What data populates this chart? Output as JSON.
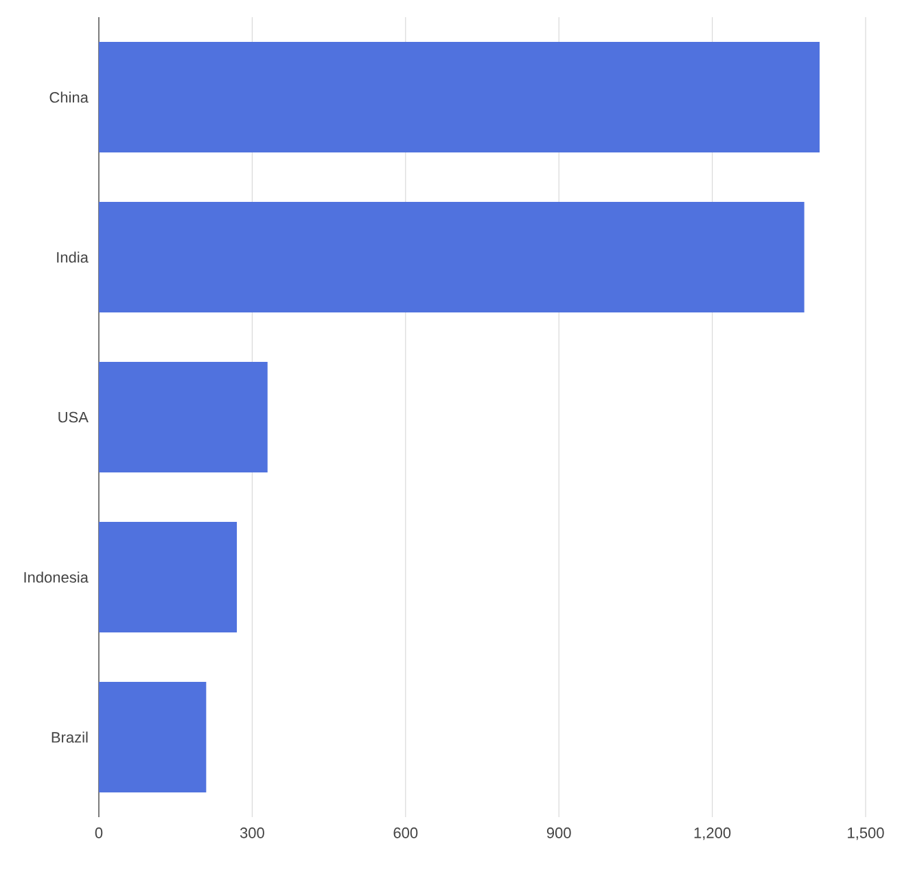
{
  "chart_data": {
    "type": "bar",
    "orientation": "horizontal",
    "categories": [
      "China",
      "India",
      "USA",
      "Indonesia",
      "Brazil"
    ],
    "values": [
      1410,
      1380,
      330,
      270,
      210
    ],
    "color": "#5072de",
    "xlim": [
      0,
      1500
    ],
    "xticks": [
      0,
      300,
      600,
      900,
      {
        "value": 1200,
        "label": "1,200"
      },
      {
        "value": 1500,
        "label": "1,500"
      }
    ],
    "grid": "x"
  }
}
